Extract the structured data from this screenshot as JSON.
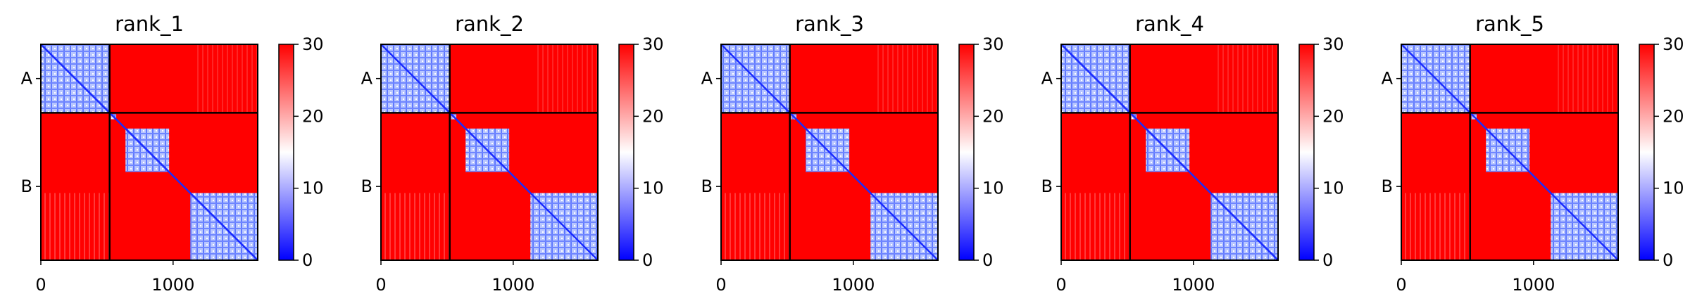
{
  "chart_data": [
    {
      "type": "heatmap",
      "title": "rank_1",
      "xlim": [
        0,
        1640
      ],
      "x_ticks": [
        {
          "value": 0,
          "label": "0"
        },
        {
          "value": 1000,
          "label": "1000"
        }
      ],
      "chains": [
        {
          "label": "A",
          "start": 0,
          "end": 520
        },
        {
          "label": "B",
          "start": 520,
          "end": 1640
        }
      ],
      "chain_boundary": 520,
      "domains": [
        [
          0,
          520
        ],
        [
          530,
          570
        ],
        [
          640,
          970
        ],
        [
          1130,
          1640
        ]
      ],
      "colorbar": {
        "min": 0,
        "max": 30,
        "ticks": [
          "0",
          "10",
          "20",
          "30"
        ],
        "colors": [
          "#0000ff",
          "#ffffff",
          "#ff0000"
        ]
      }
    },
    {
      "type": "heatmap",
      "title": "rank_2",
      "xlim": [
        0,
        1640
      ],
      "x_ticks": [
        {
          "value": 0,
          "label": "0"
        },
        {
          "value": 1000,
          "label": "1000"
        }
      ],
      "chains": [
        {
          "label": "A",
          "start": 0,
          "end": 520
        },
        {
          "label": "B",
          "start": 520,
          "end": 1640
        }
      ],
      "chain_boundary": 520,
      "domains": [
        [
          0,
          520
        ],
        [
          530,
          570
        ],
        [
          640,
          970
        ],
        [
          1130,
          1640
        ]
      ],
      "colorbar": {
        "min": 0,
        "max": 30,
        "ticks": [
          "0",
          "10",
          "20",
          "30"
        ],
        "colors": [
          "#0000ff",
          "#ffffff",
          "#ff0000"
        ]
      }
    },
    {
      "type": "heatmap",
      "title": "rank_3",
      "xlim": [
        0,
        1640
      ],
      "x_ticks": [
        {
          "value": 0,
          "label": "0"
        },
        {
          "value": 1000,
          "label": "1000"
        }
      ],
      "chains": [
        {
          "label": "A",
          "start": 0,
          "end": 520
        },
        {
          "label": "B",
          "start": 520,
          "end": 1640
        }
      ],
      "chain_boundary": 520,
      "domains": [
        [
          0,
          520
        ],
        [
          530,
          570
        ],
        [
          640,
          970
        ],
        [
          1130,
          1640
        ]
      ],
      "colorbar": {
        "min": 0,
        "max": 30,
        "ticks": [
          "0",
          "10",
          "20",
          "30"
        ],
        "colors": [
          "#0000ff",
          "#ffffff",
          "#ff0000"
        ]
      }
    },
    {
      "type": "heatmap",
      "title": "rank_4",
      "xlim": [
        0,
        1640
      ],
      "x_ticks": [
        {
          "value": 0,
          "label": "0"
        },
        {
          "value": 1000,
          "label": "1000"
        }
      ],
      "chains": [
        {
          "label": "A",
          "start": 0,
          "end": 520
        },
        {
          "label": "B",
          "start": 520,
          "end": 1640
        }
      ],
      "chain_boundary": 520,
      "domains": [
        [
          0,
          520
        ],
        [
          530,
          570
        ],
        [
          640,
          970
        ],
        [
          1130,
          1640
        ]
      ],
      "colorbar": {
        "min": 0,
        "max": 30,
        "ticks": [
          "0",
          "10",
          "20",
          "30"
        ],
        "colors": [
          "#0000ff",
          "#ffffff",
          "#ff0000"
        ]
      }
    },
    {
      "type": "heatmap",
      "title": "rank_5",
      "xlim": [
        0,
        1640
      ],
      "x_ticks": [
        {
          "value": 0,
          "label": "0"
        },
        {
          "value": 1000,
          "label": "1000"
        }
      ],
      "chains": [
        {
          "label": "A",
          "start": 0,
          "end": 520
        },
        {
          "label": "B",
          "start": 520,
          "end": 1640
        }
      ],
      "chain_boundary": 520,
      "domains": [
        [
          0,
          520
        ],
        [
          530,
          570
        ],
        [
          640,
          970
        ],
        [
          1130,
          1640
        ]
      ],
      "colorbar": {
        "min": 0,
        "max": 30,
        "ticks": [
          "0",
          "10",
          "20",
          "30"
        ],
        "colors": [
          "#0000ff",
          "#ffffff",
          "#ff0000"
        ]
      }
    }
  ]
}
